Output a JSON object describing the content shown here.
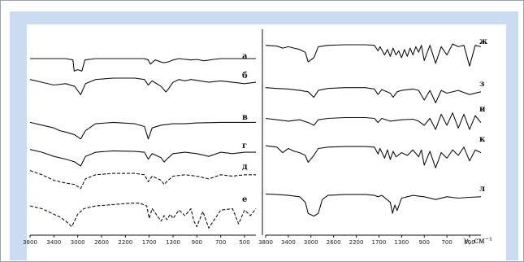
{
  "chart_data": [
    {
      "type": "line",
      "xlim": [
        3800,
        300
      ],
      "x_ticks": [
        "3800",
        "3400",
        "3000",
        "2600",
        "2200",
        "1700",
        "1300",
        "900",
        "700",
        "500"
      ],
      "series": [
        {
          "name": "а",
          "style": "solid",
          "x": [
            3800,
            3200,
            3080,
            3060,
            3000,
            2930,
            2880,
            2700,
            2000,
            1800,
            1720,
            1680,
            1600,
            1460,
            1380,
            1300,
            1200,
            1000,
            900,
            840,
            760,
            700,
            600,
            500,
            400
          ],
          "y": [
            1.0,
            1.0,
            0.95,
            0.55,
            0.6,
            0.55,
            0.95,
            1.0,
            1.0,
            1.0,
            0.95,
            0.8,
            0.95,
            0.85,
            0.88,
            0.95,
            1.0,
            0.95,
            0.97,
            0.92,
            0.97,
            1.0,
            1.0,
            1.0,
            1.0
          ]
        },
        {
          "name": "б",
          "style": "solid",
          "x": [
            3800,
            3600,
            3400,
            3200,
            3050,
            2950,
            2870,
            2700,
            2400,
            2000,
            1800,
            1720,
            1650,
            1500,
            1420,
            1380,
            1300,
            1200,
            1100,
            1000,
            900,
            800,
            700,
            600,
            500,
            400
          ],
          "y": [
            0.95,
            0.85,
            0.75,
            0.8,
            0.7,
            0.4,
            0.8,
            0.95,
            1.0,
            1.0,
            0.95,
            0.75,
            0.9,
            0.7,
            0.5,
            0.6,
            0.85,
            0.95,
            0.9,
            0.95,
            0.92,
            0.85,
            0.9,
            0.85,
            0.8,
            0.85
          ]
        },
        {
          "name": "в",
          "style": "solid",
          "x": [
            3800,
            3600,
            3400,
            3300,
            3200,
            3050,
            2950,
            2870,
            2700,
            2400,
            2000,
            1800,
            1720,
            1650,
            1500,
            1300,
            1100,
            900,
            700,
            500,
            400
          ],
          "y": [
            0.9,
            0.8,
            0.7,
            0.6,
            0.55,
            0.45,
            0.3,
            0.6,
            0.85,
            0.9,
            0.85,
            0.75,
            0.3,
            0.7,
            0.8,
            0.85,
            0.85,
            0.88,
            0.9,
            0.9,
            0.9
          ]
        },
        {
          "name": "г",
          "style": "solid",
          "x": [
            3800,
            3600,
            3400,
            3200,
            3050,
            2950,
            2870,
            2700,
            2400,
            2000,
            1800,
            1720,
            1650,
            1500,
            1450,
            1380,
            1300,
            1100,
            900,
            800,
            700,
            600,
            500,
            400
          ],
          "y": [
            0.95,
            0.85,
            0.7,
            0.6,
            0.5,
            0.35,
            0.7,
            0.85,
            0.9,
            0.88,
            0.85,
            0.6,
            0.8,
            0.65,
            0.5,
            0.65,
            0.8,
            0.85,
            0.8,
            0.7,
            0.85,
            0.8,
            0.85,
            0.85
          ]
        },
        {
          "name": "д",
          "style": "dashed",
          "x": [
            3800,
            3600,
            3400,
            3200,
            3050,
            2950,
            2870,
            2700,
            2400,
            2000,
            1800,
            1720,
            1650,
            1500,
            1450,
            1380,
            1300,
            1100,
            900,
            800,
            700,
            600,
            500,
            400
          ],
          "y": [
            0.95,
            0.8,
            0.6,
            0.5,
            0.45,
            0.3,
            0.65,
            0.8,
            0.85,
            0.85,
            0.8,
            0.55,
            0.75,
            0.6,
            0.45,
            0.6,
            0.75,
            0.8,
            0.75,
            0.65,
            0.8,
            0.75,
            0.8,
            0.8
          ]
        },
        {
          "name": "е",
          "style": "dashed",
          "x": [
            3800,
            3600,
            3500,
            3400,
            3300,
            3200,
            3100,
            3000,
            2900,
            2700,
            2400,
            2100,
            1900,
            1750,
            1700,
            1650,
            1600,
            1500,
            1450,
            1400,
            1350,
            1300,
            1200,
            1100,
            1000,
            950,
            900,
            850,
            800,
            700,
            600,
            550,
            500,
            450,
            400
          ],
          "y": [
            0.85,
            0.75,
            0.65,
            0.55,
            0.45,
            0.3,
            0.1,
            0.55,
            0.75,
            0.85,
            0.9,
            0.95,
            0.95,
            0.85,
            0.4,
            0.75,
            0.6,
            0.3,
            0.5,
            0.35,
            0.55,
            0.4,
            0.7,
            0.5,
            0.75,
            0.3,
            0.1,
            0.65,
            0.05,
            0.7,
            0.75,
            0.2,
            0.7,
            0.5,
            0.75
          ]
        },
        {
          "name": "ж",
          "style": "solid",
          "x": [
            3800,
            3600,
            3500,
            3400,
            3300,
            3200,
            3100,
            3050,
            2950,
            2870,
            2700,
            2400,
            2000,
            1800,
            1720,
            1680,
            1600,
            1550,
            1500,
            1450,
            1400,
            1350,
            1300,
            1250,
            1200,
            1150,
            1100,
            1050,
            1000,
            950,
            900,
            850,
            800,
            750,
            700,
            650,
            600,
            550,
            500,
            450,
            400
          ],
          "y": [
            0.95,
            0.92,
            0.85,
            0.9,
            0.85,
            0.8,
            0.7,
            0.35,
            0.5,
            0.9,
            0.95,
            0.97,
            0.97,
            0.95,
            0.75,
            0.9,
            0.6,
            0.8,
            0.55,
            0.85,
            0.6,
            0.75,
            0.5,
            0.8,
            0.55,
            0.85,
            0.6,
            0.9,
            0.7,
            0.95,
            0.4,
            0.95,
            0.3,
            0.9,
            0.6,
            1.0,
            0.9,
            0.95,
            0.2,
            0.95,
            0.9
          ]
        },
        {
          "name": "з",
          "style": "solid",
          "x": [
            3800,
            3600,
            3400,
            3200,
            3050,
            2950,
            2870,
            2700,
            2400,
            2000,
            1800,
            1720,
            1650,
            1500,
            1450,
            1380,
            1300,
            1100,
            1000,
            900,
            850,
            800,
            750,
            700,
            600,
            500,
            400
          ],
          "y": [
            0.95,
            0.92,
            0.9,
            0.85,
            0.8,
            0.6,
            0.85,
            0.92,
            0.95,
            0.95,
            0.9,
            0.7,
            0.88,
            0.75,
            0.6,
            0.8,
            0.85,
            0.9,
            0.85,
            0.5,
            0.85,
            0.4,
            0.85,
            0.75,
            0.85,
            0.7,
            0.8
          ]
        },
        {
          "name": "и",
          "style": "solid",
          "x": [
            3800,
            3600,
            3400,
            3200,
            3050,
            2950,
            2870,
            2700,
            2400,
            2000,
            1800,
            1720,
            1650,
            1500,
            1300,
            1100,
            1000,
            900,
            850,
            800,
            750,
            700,
            650,
            600,
            550,
            500,
            450,
            400
          ],
          "y": [
            0.75,
            0.7,
            0.65,
            0.7,
            0.6,
            0.5,
            0.7,
            0.75,
            0.78,
            0.78,
            0.75,
            0.6,
            0.75,
            0.65,
            0.7,
            0.72,
            0.65,
            0.5,
            0.75,
            0.35,
            0.9,
            0.5,
            0.95,
            0.4,
            0.9,
            0.35,
            0.85,
            0.6
          ]
        },
        {
          "name": "к",
          "style": "solid",
          "x": [
            3800,
            3600,
            3500,
            3400,
            3300,
            3200,
            3100,
            3050,
            2950,
            2870,
            2700,
            2400,
            2000,
            1800,
            1720,
            1680,
            1600,
            1550,
            1500,
            1450,
            1400,
            1300,
            1200,
            1100,
            1000,
            950,
            900,
            850,
            800,
            750,
            700,
            650,
            600,
            550,
            500,
            450,
            400
          ],
          "y": [
            0.85,
            0.8,
            0.6,
            0.75,
            0.65,
            0.6,
            0.5,
            0.25,
            0.5,
            0.75,
            0.8,
            0.82,
            0.82,
            0.8,
            0.55,
            0.75,
            0.4,
            0.7,
            0.35,
            0.65,
            0.45,
            0.6,
            0.5,
            0.7,
            0.45,
            0.7,
            0.15,
            0.65,
            0.05,
            0.6,
            0.4,
            0.7,
            0.5,
            0.8,
            0.3,
            0.7,
            0.6
          ]
        },
        {
          "name": "л",
          "style": "solid",
          "x": [
            3800,
            3600,
            3400,
            3200,
            3100,
            3050,
            2950,
            2870,
            2800,
            2700,
            2400,
            2000,
            1800,
            1720,
            1650,
            1500,
            1460,
            1420,
            1380,
            1300,
            1200,
            1100,
            1000,
            900,
            800,
            700,
            600,
            500,
            400
          ],
          "y": [
            0.9,
            0.88,
            0.85,
            0.8,
            0.6,
            0.2,
            0.1,
            0.2,
            0.7,
            0.85,
            0.88,
            0.88,
            0.85,
            0.8,
            0.85,
            0.6,
            0.2,
            0.5,
            0.3,
            0.75,
            0.8,
            0.85,
            0.82,
            0.8,
            0.7,
            0.8,
            0.75,
            0.78,
            0.8
          ]
        }
      ],
      "x_unit_label": "ν, см⁻¹"
    }
  ]
}
